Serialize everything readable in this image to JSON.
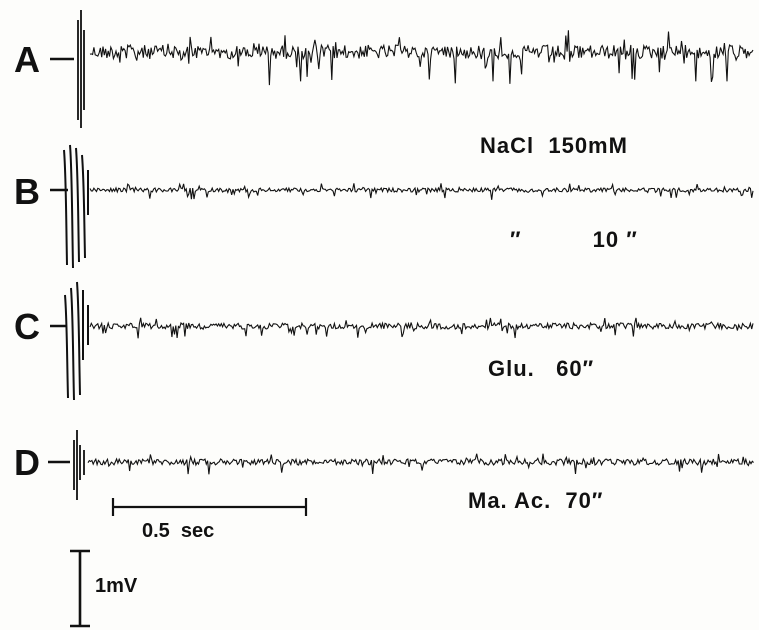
{
  "traces": [
    {
      "label": "A",
      "condition": "NaCl  150mM",
      "activity": "high"
    },
    {
      "label": "B",
      "condition": "″          10 ″",
      "activity": "low"
    },
    {
      "label": "C",
      "condition": "Glu.   60″",
      "activity": "medium"
    },
    {
      "label": "D",
      "condition": "Ma. Ac.  70″",
      "activity": "medium"
    }
  ],
  "scale_bars": {
    "time": "0.5  sec",
    "voltage": "1mV"
  },
  "colors": {
    "ink": "#111111",
    "background": "#fdfdfb"
  }
}
